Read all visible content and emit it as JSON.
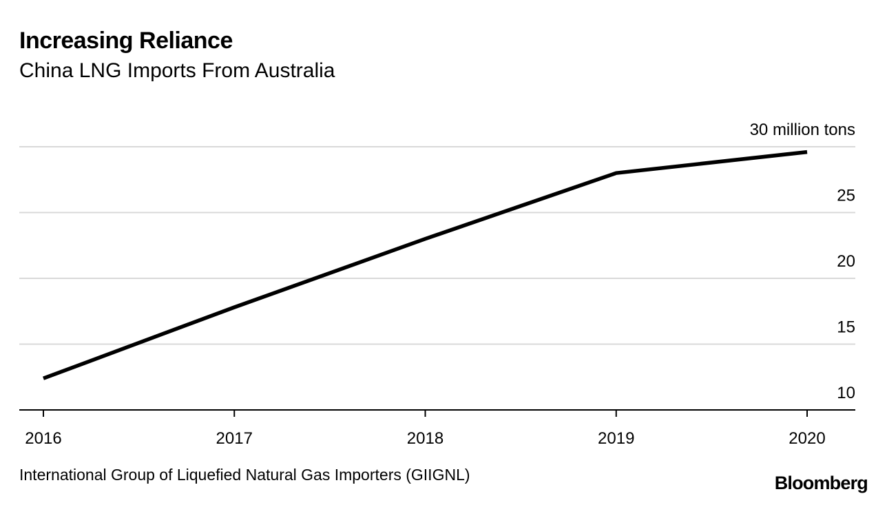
{
  "header": {
    "title": "Increasing Reliance",
    "subtitle": "China LNG Imports From Australia"
  },
  "footer": {
    "source": "International Group of Liquefied Natural Gas Importers (GIIGNL)",
    "brand": "Bloomberg"
  },
  "colors": {
    "line": "#000000",
    "grid": "#d9d9d9",
    "axis": "#000000",
    "background": "#ffffff"
  },
  "chart_data": {
    "type": "line",
    "title": "Increasing Reliance",
    "subtitle": "China LNG Imports From Australia",
    "xlabel": "",
    "ylabel": "million tons",
    "x": [
      "2016",
      "2017",
      "2018",
      "2019",
      "2020"
    ],
    "series": [
      {
        "name": "China LNG Imports From Australia",
        "values": [
          12.4,
          17.8,
          23.0,
          28.0,
          29.6
        ]
      }
    ],
    "ylim": [
      10,
      30
    ],
    "y_ticks": [
      10,
      15,
      20,
      25,
      30
    ],
    "y_tick_labels": [
      "10",
      "15",
      "20",
      "25",
      "30 million tons"
    ],
    "grid": true,
    "legend": "none"
  }
}
